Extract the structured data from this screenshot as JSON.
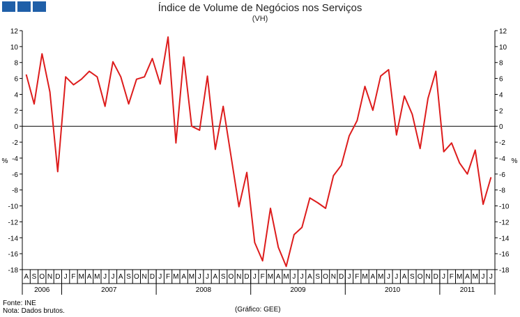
{
  "header": {
    "logo_color": "#1f5fa8"
  },
  "chart_data": {
    "type": "line",
    "title": "Índice de Volume de Negócios nos Serviços",
    "subtitle": "(VH)",
    "ylabel": "%",
    "ylim": [
      -18,
      12
    ],
    "yticks": [
      12,
      10,
      8,
      6,
      4,
      2,
      0,
      -2,
      -4,
      -6,
      -8,
      -10,
      -12,
      -14,
      -16,
      -18
    ],
    "grid": false,
    "line_color": "#dd1c1c",
    "x_months": [
      "A",
      "S",
      "O",
      "N",
      "D",
      "J",
      "F",
      "M",
      "A",
      "M",
      "J",
      "J",
      "A",
      "S",
      "O",
      "N",
      "D",
      "J",
      "F",
      "M",
      "A",
      "M",
      "J",
      "J",
      "A",
      "S",
      "O",
      "N",
      "D",
      "J",
      "F",
      "M",
      "A",
      "M",
      "J",
      "J",
      "A",
      "S",
      "O",
      "N",
      "D",
      "J",
      "F",
      "M",
      "A",
      "M",
      "J",
      "J",
      "A",
      "S",
      "O",
      "N",
      "D",
      "J",
      "F",
      "M",
      "A",
      "M",
      "J",
      "J"
    ],
    "years": [
      {
        "label": "2006",
        "start": 0,
        "end": 4
      },
      {
        "label": "2007",
        "start": 5,
        "end": 16
      },
      {
        "label": "2008",
        "start": 17,
        "end": 28
      },
      {
        "label": "2009",
        "start": 29,
        "end": 40
      },
      {
        "label": "2010",
        "start": 41,
        "end": 52
      },
      {
        "label": "2011",
        "start": 53,
        "end": 59
      }
    ],
    "series": [
      {
        "values": [
          6.5,
          2.8,
          9.1,
          4.3,
          -5.7,
          6.2,
          5.2,
          5.9,
          6.9,
          6.2,
          2.5,
          8.1,
          6.2,
          2.8,
          5.9,
          6.2,
          8.5,
          5.3,
          11.2,
          -2.1,
          8.7,
          0.0,
          -0.5,
          6.3,
          -2.9,
          2.5,
          -3.8,
          -10.1,
          -5.8,
          -14.6,
          -16.9,
          -10.3,
          -15.2,
          -17.6,
          -13.6,
          -12.7,
          -9.0,
          -9.6,
          -10.3,
          -6.2,
          -4.9,
          -1.2,
          0.7,
          5.0,
          2.0,
          6.3,
          7.1,
          -1.1,
          3.8,
          1.5,
          -2.8,
          3.5,
          6.9,
          -3.2,
          -2.1,
          -4.6,
          -6.0,
          -3.0,
          -9.8,
          -6.4
        ]
      }
    ]
  },
  "footer": {
    "source": "Fonte: INE",
    "note": "Nota: Dados brutos.",
    "credit": "(Gráfico: GEE)"
  }
}
